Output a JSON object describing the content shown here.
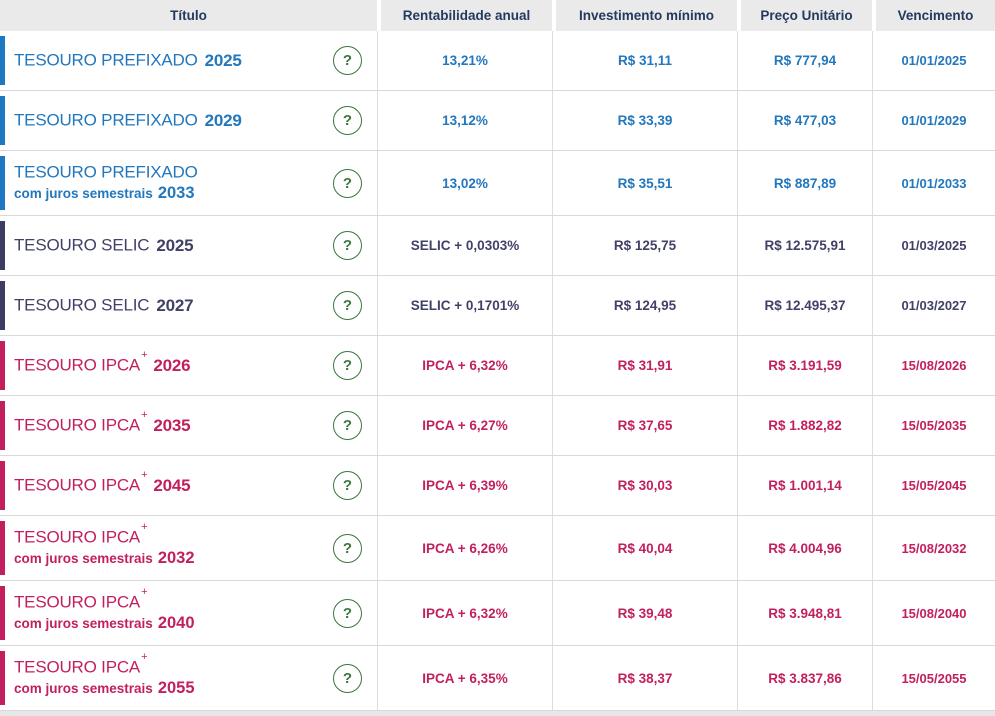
{
  "header": {
    "columns": [
      "Título",
      "Rentabilidade anual",
      "Investimento mínimo",
      "Preço Unitário",
      "Vencimento"
    ]
  },
  "help_icon": "?",
  "colors": {
    "prefixado_blue": "#2277bd",
    "selic_navy": "#414168",
    "ipca_pink": "#c21f5e",
    "help_green": "#3c763d",
    "header_text": "#24395f",
    "header_bg": "#eaeaea",
    "row_border": "#d9d9d9",
    "page_bg": "#e7e7e7"
  },
  "rows": [
    {
      "name": "TESOURO PREFIXADO",
      "sup": "",
      "subtitle": "",
      "year": "2025",
      "theme": "blue",
      "rate": "13,21%",
      "min": "R$ 31,11",
      "price": "R$ 777,94",
      "maturity": "01/01/2025"
    },
    {
      "name": "TESOURO PREFIXADO",
      "sup": "",
      "subtitle": "",
      "year": "2029",
      "theme": "blue",
      "rate": "13,12%",
      "min": "R$ 33,39",
      "price": "R$ 477,03",
      "maturity": "01/01/2029"
    },
    {
      "name": "TESOURO PREFIXADO",
      "sup": "",
      "subtitle": "com juros semestrais",
      "year": "2033",
      "theme": "blue",
      "rate": "13,02%",
      "min": "R$ 35,51",
      "price": "R$ 887,89",
      "maturity": "01/01/2033"
    },
    {
      "name": "TESOURO SELIC",
      "sup": "",
      "subtitle": "",
      "year": "2025",
      "theme": "navy",
      "rate": "SELIC + 0,0303%",
      "min": "R$ 125,75",
      "price": "R$ 12.575,91",
      "maturity": "01/03/2025"
    },
    {
      "name": "TESOURO SELIC",
      "sup": "",
      "subtitle": "",
      "year": "2027",
      "theme": "navy",
      "rate": "SELIC + 0,1701%",
      "min": "R$ 124,95",
      "price": "R$ 12.495,37",
      "maturity": "01/03/2027"
    },
    {
      "name": "TESOURO IPCA",
      "sup": "+",
      "subtitle": "",
      "year": "2026",
      "theme": "pink",
      "rate": "IPCA + 6,32%",
      "min": "R$ 31,91",
      "price": "R$ 3.191,59",
      "maturity": "15/08/2026"
    },
    {
      "name": "TESOURO IPCA",
      "sup": "+",
      "subtitle": "",
      "year": "2035",
      "theme": "pink",
      "rate": "IPCA + 6,27%",
      "min": "R$ 37,65",
      "price": "R$ 1.882,82",
      "maturity": "15/05/2035"
    },
    {
      "name": "TESOURO IPCA",
      "sup": "+",
      "subtitle": "",
      "year": "2045",
      "theme": "pink",
      "rate": "IPCA + 6,39%",
      "min": "R$ 30,03",
      "price": "R$ 1.001,14",
      "maturity": "15/05/2045"
    },
    {
      "name": "TESOURO IPCA",
      "sup": "+",
      "subtitle": "com juros semestrais",
      "year": "2032",
      "theme": "pink",
      "rate": "IPCA + 6,26%",
      "min": "R$ 40,04",
      "price": "R$ 4.004,96",
      "maturity": "15/08/2032"
    },
    {
      "name": "TESOURO IPCA",
      "sup": "+",
      "subtitle": "com juros semestrais",
      "year": "2040",
      "theme": "pink",
      "rate": "IPCA + 6,32%",
      "min": "R$ 39,48",
      "price": "R$ 3.948,81",
      "maturity": "15/08/2040"
    },
    {
      "name": "TESOURO IPCA",
      "sup": "+",
      "subtitle": "com juros semestrais",
      "year": "2055",
      "theme": "pink",
      "rate": "IPCA + 6,35%",
      "min": "R$ 38,37",
      "price": "R$ 3.837,86",
      "maturity": "15/05/2055"
    }
  ]
}
